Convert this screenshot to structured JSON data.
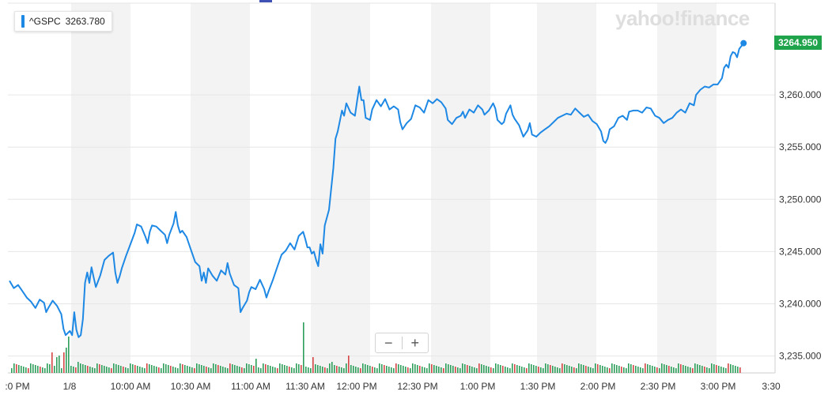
{
  "tooltip": {
    "symbol": "^GSPC",
    "value": "3263.780"
  },
  "logo": {
    "text": "yahoo!finance"
  },
  "last_price_tag": "3264.950",
  "zoom": {
    "minus": "−",
    "plus": "+"
  },
  "colors": {
    "line": "#1e88e5",
    "volume_up": "#2e9e5b",
    "volume_down": "#d64545",
    "band": "#f3f3f3",
    "grid": "#e6e6e6",
    "price_tag": "#1fa34b",
    "accent": "#3f51b5"
  },
  "chart_data": {
    "type": "line",
    "title": "",
    "xlabel": "",
    "ylabel": "",
    "ylim": [
      3232.5,
      3267.5
    ],
    "y_ticks": [
      "3,235.000",
      "3,240.000",
      "3,245.000",
      "3,250.000",
      "3,255.000",
      "3,260.000"
    ],
    "x_ticks": [
      ":0 PM",
      "1/8",
      "10:00 AM",
      "10:30 AM",
      "11:00 AM",
      "11:30 AM",
      "12:00 PM",
      "12:30 PM",
      "1:00 PM",
      "1:30 PM",
      "2:00 PM",
      "2:30 PM",
      "3:00 PM",
      "3:30"
    ],
    "grid": true,
    "series": [
      {
        "values": [
          [
            0,
            3242.2
          ],
          [
            2,
            3241.5
          ],
          [
            4,
            3241.8
          ],
          [
            6,
            3241.2
          ],
          [
            8,
            3240.6
          ],
          [
            10,
            3240.2
          ],
          [
            12,
            3239.6
          ],
          [
            14,
            3240.4
          ],
          [
            16,
            3240.1
          ],
          [
            17,
            3239.2
          ],
          [
            18,
            3239.6
          ],
          [
            20,
            3240.3
          ],
          [
            22,
            3239.8
          ],
          [
            24,
            3239.0
          ],
          [
            25,
            3237.6
          ],
          [
            26,
            3237.0
          ],
          [
            28,
            3237.4
          ],
          [
            29,
            3237.0
          ],
          [
            30,
            3239.2
          ],
          [
            31,
            3237.5
          ],
          [
            32,
            3236.8
          ],
          [
            33,
            3237.0
          ],
          [
            34,
            3238.5
          ],
          [
            35,
            3242.0
          ],
          [
            36,
            3243.0
          ],
          [
            37,
            3242.0
          ],
          [
            38,
            3243.5
          ],
          [
            39,
            3242.5
          ],
          [
            40,
            3241.6
          ],
          [
            42,
            3242.7
          ],
          [
            44,
            3244.2
          ],
          [
            46,
            3244.6
          ],
          [
            48,
            3244.9
          ],
          [
            49,
            3243.0
          ],
          [
            50,
            3242.0
          ],
          [
            51,
            3242.6
          ],
          [
            52,
            3243.4
          ],
          [
            54,
            3244.6
          ],
          [
            56,
            3245.7
          ],
          [
            58,
            3246.8
          ],
          [
            59,
            3247.6
          ],
          [
            61,
            3247.4
          ],
          [
            63,
            3246.4
          ],
          [
            64,
            3245.8
          ],
          [
            65,
            3246.9
          ],
          [
            66,
            3247.5
          ],
          [
            68,
            3247.4
          ],
          [
            70,
            3247.0
          ],
          [
            72,
            3246.6
          ],
          [
            73,
            3245.8
          ],
          [
            74,
            3246.6
          ],
          [
            76,
            3247.7
          ],
          [
            77,
            3248.8
          ],
          [
            78,
            3247.5
          ],
          [
            79,
            3246.8
          ],
          [
            80,
            3247.0
          ],
          [
            82,
            3246.4
          ],
          [
            84,
            3245.2
          ],
          [
            86,
            3244.0
          ],
          [
            88,
            3243.6
          ],
          [
            89,
            3242.2
          ],
          [
            90,
            3243.0
          ],
          [
            91,
            3242.0
          ],
          [
            92,
            3243.4
          ],
          [
            94,
            3242.7
          ],
          [
            96,
            3242.2
          ],
          [
            98,
            3243.2
          ],
          [
            100,
            3242.8
          ],
          [
            101,
            3243.9
          ],
          [
            102,
            3242.9
          ],
          [
            104,
            3241.8
          ],
          [
            106,
            3241.5
          ],
          [
            107,
            3239.2
          ],
          [
            108,
            3239.6
          ],
          [
            110,
            3240.3
          ],
          [
            111,
            3241.1
          ],
          [
            112,
            3241.6
          ],
          [
            114,
            3241.4
          ],
          [
            116,
            3242.3
          ],
          [
            118,
            3241.4
          ],
          [
            119,
            3240.6
          ],
          [
            120,
            3241.2
          ],
          [
            122,
            3242.3
          ],
          [
            124,
            3243.5
          ],
          [
            126,
            3244.7
          ],
          [
            128,
            3245.1
          ],
          [
            130,
            3245.8
          ],
          [
            132,
            3245.2
          ],
          [
            134,
            3246.5
          ],
          [
            136,
            3246.9
          ],
          [
            137,
            3246.2
          ],
          [
            138,
            3245.4
          ],
          [
            139,
            3245.4
          ],
          [
            140,
            3244.8
          ],
          [
            141,
            3245.0
          ],
          [
            142,
            3244.2
          ],
          [
            143,
            3243.6
          ],
          [
            144,
            3245.7
          ],
          [
            145,
            3244.8
          ],
          [
            146,
            3247.5
          ],
          [
            148,
            3249.0
          ],
          [
            150,
            3253.0
          ],
          [
            151,
            3255.8
          ],
          [
            152,
            3256.5
          ],
          [
            154,
            3258.5
          ],
          [
            155,
            3258.0
          ],
          [
            156,
            3259.2
          ],
          [
            158,
            3258.3
          ],
          [
            160,
            3258.0
          ],
          [
            161,
            3259.4
          ],
          [
            162,
            3260.8
          ],
          [
            163,
            3259.5
          ],
          [
            164,
            3259.5
          ],
          [
            165,
            3257.8
          ],
          [
            167,
            3257.6
          ],
          [
            168,
            3258.6
          ],
          [
            170,
            3259.5
          ],
          [
            172,
            3258.9
          ],
          [
            174,
            3259.6
          ],
          [
            176,
            3258.6
          ],
          [
            178,
            3258.9
          ],
          [
            180,
            3258.6
          ],
          [
            181,
            3257.4
          ],
          [
            182,
            3256.7
          ],
          [
            184,
            3257.3
          ],
          [
            186,
            3257.7
          ],
          [
            188,
            3259.0
          ],
          [
            190,
            3258.8
          ],
          [
            192,
            3258.3
          ],
          [
            194,
            3259.5
          ],
          [
            196,
            3259.2
          ],
          [
            198,
            3259.6
          ],
          [
            200,
            3259.3
          ],
          [
            202,
            3258.7
          ],
          [
            203,
            3257.6
          ],
          [
            205,
            3257.2
          ],
          [
            207,
            3257.8
          ],
          [
            209,
            3258.0
          ],
          [
            210,
            3258.4
          ],
          [
            211,
            3257.8
          ],
          [
            213,
            3258.6
          ],
          [
            215,
            3258.3
          ],
          [
            217,
            3259.0
          ],
          [
            219,
            3258.6
          ],
          [
            220,
            3258.1
          ],
          [
            222,
            3258.5
          ],
          [
            224,
            3259.2
          ],
          [
            225,
            3258.7
          ],
          [
            226,
            3257.6
          ],
          [
            228,
            3257.2
          ],
          [
            229,
            3257.4
          ],
          [
            230,
            3258.2
          ],
          [
            232,
            3259.0
          ],
          [
            233,
            3258.1
          ],
          [
            234,
            3257.7
          ],
          [
            236,
            3257.1
          ],
          [
            238,
            3256.0
          ],
          [
            240,
            3256.6
          ],
          [
            241,
            3257.3
          ],
          [
            242,
            3256.2
          ],
          [
            244,
            3256.0
          ],
          [
            246,
            3256.4
          ],
          [
            248,
            3256.7
          ],
          [
            250,
            3257.0
          ],
          [
            252,
            3257.4
          ],
          [
            254,
            3257.8
          ],
          [
            256,
            3258.0
          ],
          [
            258,
            3258.2
          ],
          [
            260,
            3258.1
          ],
          [
            262,
            3258.7
          ],
          [
            264,
            3258.3
          ],
          [
            266,
            3257.9
          ],
          [
            268,
            3258.1
          ],
          [
            270,
            3257.5
          ],
          [
            272,
            3257.2
          ],
          [
            274,
            3256.5
          ],
          [
            275,
            3255.6
          ],
          [
            276,
            3255.4
          ],
          [
            277,
            3255.8
          ],
          [
            278,
            3256.7
          ],
          [
            280,
            3257.0
          ],
          [
            282,
            3257.8
          ],
          [
            284,
            3258.0
          ],
          [
            286,
            3257.6
          ],
          [
            287,
            3258.4
          ],
          [
            289,
            3258.5
          ],
          [
            291,
            3258.5
          ],
          [
            293,
            3258.3
          ],
          [
            295,
            3258.8
          ],
          [
            297,
            3258.7
          ],
          [
            299,
            3258.0
          ],
          [
            301,
            3257.8
          ],
          [
            303,
            3257.3
          ],
          [
            305,
            3257.6
          ],
          [
            307,
            3257.8
          ],
          [
            309,
            3258.3
          ],
          [
            311,
            3258.6
          ],
          [
            313,
            3258.3
          ],
          [
            315,
            3259.2
          ],
          [
            317,
            3259.0
          ],
          [
            318,
            3260.0
          ],
          [
            320,
            3260.5
          ],
          [
            322,
            3260.8
          ],
          [
            324,
            3260.7
          ],
          [
            326,
            3261.0
          ],
          [
            328,
            3261.0
          ],
          [
            330,
            3261.6
          ],
          [
            331,
            3262.6
          ],
          [
            332,
            3262.9
          ],
          [
            333,
            3262.6
          ],
          [
            334,
            3263.7
          ],
          [
            335,
            3264.1
          ],
          [
            336,
            3264.0
          ],
          [
            337,
            3263.6
          ],
          [
            338,
            3264.4
          ],
          [
            340,
            3264.95
          ]
        ]
      }
    ]
  }
}
